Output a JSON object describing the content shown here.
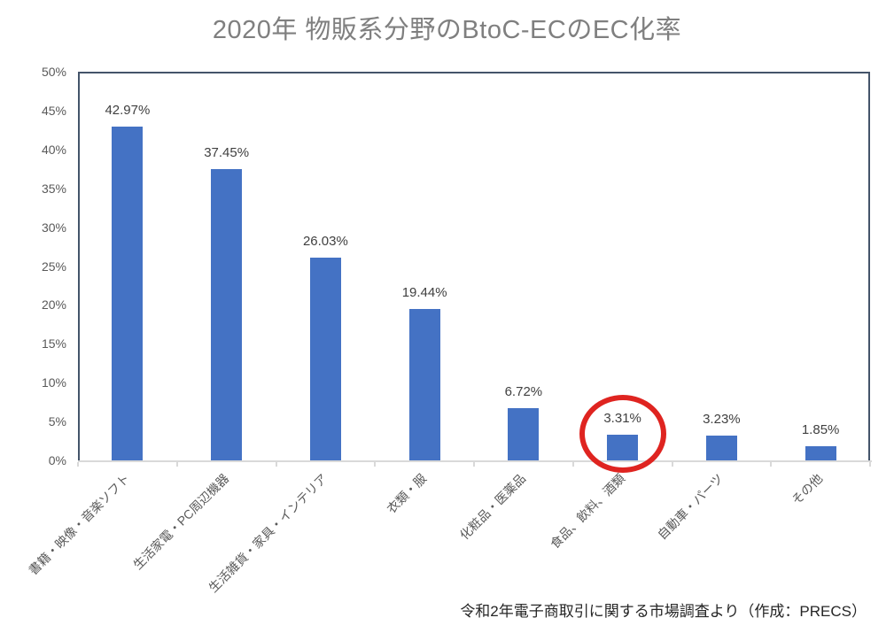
{
  "chart": {
    "title": "2020年 物販系分野のBtoC-ECのEC化率",
    "source_note": "令和2年電子商取引に関する市場調査より（作成：PRECS）"
  },
  "chart_data": {
    "type": "bar",
    "title": "2020年 物販系分野のBtoC-ECのEC化率",
    "categories": [
      "書籍・映像・音楽ソフト",
      "生活家電・PC周辺機器",
      "生活雑貨・家具・インテリア",
      "衣類・服",
      "化粧品・医薬品",
      "食品、飲料、酒類",
      "自動車・パーツ",
      "その他"
    ],
    "values": [
      42.97,
      37.45,
      26.03,
      19.44,
      6.72,
      3.31,
      3.23,
      1.85
    ],
    "value_labels": [
      "42.97%",
      "37.45%",
      "26.03%",
      "19.44%",
      "6.72%",
      "3.31%",
      "3.23%",
      "1.85%"
    ],
    "xlabel": "",
    "ylabel": "",
    "ylim": [
      0,
      50
    ],
    "y_ticks": [
      "0%",
      "5%",
      "10%",
      "15%",
      "20%",
      "25%",
      "30%",
      "35%",
      "40%",
      "45%",
      "50%"
    ],
    "grid": false,
    "legend": "none",
    "bar_color": "#4472c4",
    "annotation": {
      "type": "ellipse",
      "around_category": "食品、飲料、酒類",
      "around_category_index": 5,
      "color": "#df2420"
    },
    "source_note": "令和2年電子商取引に関する市場調査より（作成：PRECS）"
  }
}
